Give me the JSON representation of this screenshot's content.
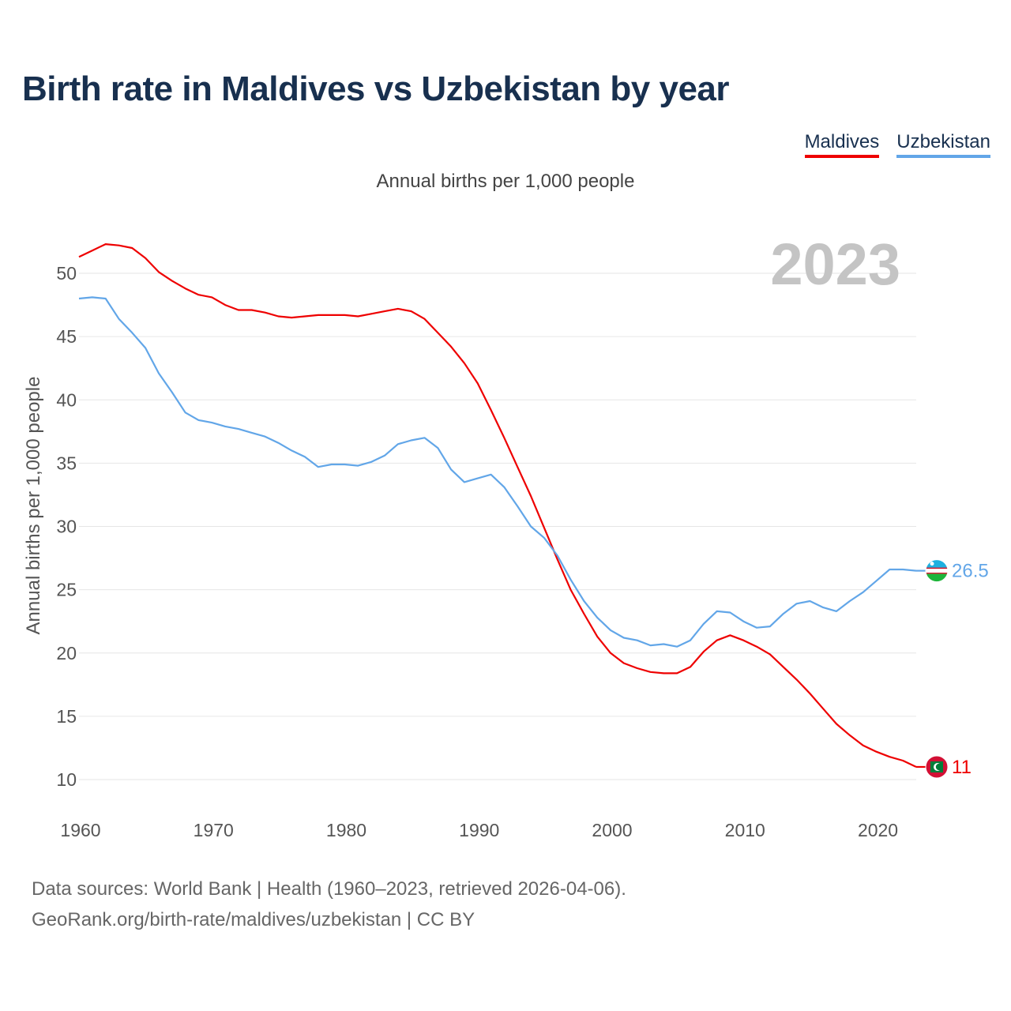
{
  "title": "Birth rate in Maldives vs Uzbekistan by year",
  "subtitle": "Annual births per 1,000 people",
  "legend": [
    {
      "label": "Maldives",
      "color": "#ee0000"
    },
    {
      "label": "Uzbekistan",
      "color": "#62a6e8"
    }
  ],
  "year_watermark": "2023",
  "footer": {
    "line1": "Data sources: World Bank | Health (1960–2023, retrieved 2026-04-06).",
    "line2": "GeoRank.org/birth-rate/maldives/uzbekistan | CC BY"
  },
  "chart_data": {
    "type": "line",
    "title": "Birth rate in Maldives vs Uzbekistan by year",
    "ylabel": "Annual births per 1,000 people",
    "xlabel": "",
    "xlim": [
      1960,
      2023
    ],
    "ylim": [
      10,
      52
    ],
    "x_ticks": [
      1960,
      1970,
      1980,
      1990,
      2000,
      2010,
      2020
    ],
    "y_ticks": [
      10,
      15,
      20,
      25,
      30,
      35,
      40,
      45,
      50
    ],
    "grid": true,
    "x": [
      1960,
      1961,
      1962,
      1963,
      1964,
      1965,
      1966,
      1967,
      1968,
      1969,
      1970,
      1971,
      1972,
      1973,
      1974,
      1975,
      1976,
      1977,
      1978,
      1979,
      1980,
      1981,
      1982,
      1983,
      1984,
      1985,
      1986,
      1987,
      1988,
      1989,
      1990,
      1991,
      1992,
      1993,
      1994,
      1995,
      1996,
      1997,
      1998,
      1999,
      2000,
      2001,
      2002,
      2003,
      2004,
      2005,
      2006,
      2007,
      2008,
      2009,
      2010,
      2011,
      2012,
      2013,
      2014,
      2015,
      2016,
      2017,
      2018,
      2019,
      2020,
      2021,
      2022,
      2023
    ],
    "series": [
      {
        "name": "Maldives",
        "color": "#ee0000",
        "end_label": "11",
        "values": [
          51.3,
          51.8,
          52.3,
          52.2,
          52.0,
          51.2,
          50.1,
          49.4,
          48.8,
          48.3,
          48.1,
          47.5,
          47.1,
          47.1,
          46.9,
          46.6,
          46.5,
          46.6,
          46.7,
          46.7,
          46.7,
          46.6,
          46.8,
          47.0,
          47.2,
          47.0,
          46.4,
          45.3,
          44.2,
          42.9,
          41.3,
          39.2,
          37.0,
          34.7,
          32.4,
          29.9,
          27.4,
          25.0,
          23.1,
          21.3,
          20.0,
          19.2,
          18.8,
          18.5,
          18.4,
          18.4,
          18.9,
          20.1,
          21.0,
          21.4,
          21.0,
          20.5,
          19.9,
          18.9,
          17.9,
          16.8,
          15.6,
          14.4,
          13.5,
          12.7,
          12.2,
          11.8,
          11.5,
          11.0
        ]
      },
      {
        "name": "Uzbekistan",
        "color": "#62a6e8",
        "end_label": "26.5",
        "values": [
          48.0,
          48.1,
          48.0,
          46.4,
          45.3,
          44.1,
          42.1,
          40.6,
          39.0,
          38.4,
          38.2,
          37.9,
          37.7,
          37.4,
          37.1,
          36.6,
          36.0,
          35.5,
          34.7,
          34.9,
          34.9,
          34.8,
          35.1,
          35.6,
          36.5,
          36.8,
          37.0,
          36.2,
          34.5,
          33.5,
          33.8,
          34.1,
          33.1,
          31.6,
          30.0,
          29.1,
          27.7,
          25.8,
          24.1,
          22.8,
          21.8,
          21.2,
          21.0,
          20.6,
          20.7,
          20.5,
          21.0,
          22.3,
          23.3,
          23.2,
          22.5,
          22.0,
          22.1,
          23.1,
          23.9,
          24.1,
          23.6,
          23.3,
          24.1,
          24.8,
          25.7,
          26.6,
          26.6,
          26.5
        ]
      }
    ]
  }
}
